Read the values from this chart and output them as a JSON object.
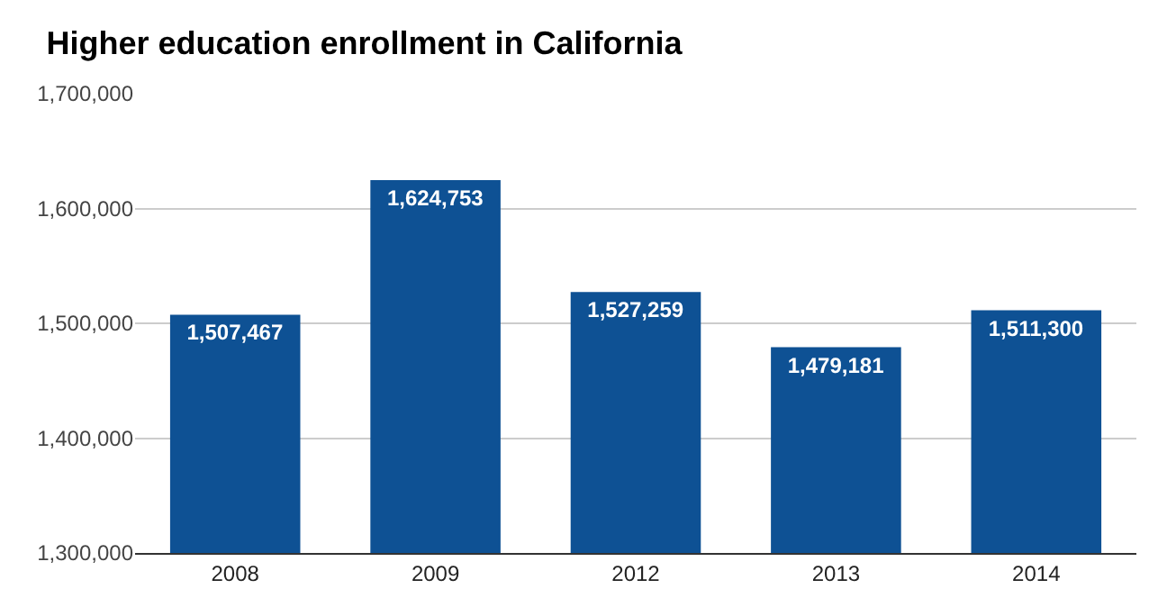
{
  "chart_data": {
    "type": "bar",
    "title": "Higher education enrollment in California",
    "categories": [
      "2008",
      "2009",
      "2012",
      "2013",
      "2014"
    ],
    "values": [
      1507467,
      1624753,
      1527259,
      1479181,
      1511300
    ],
    "color": "#0e5194",
    "ylim": [
      1300000,
      1700000
    ],
    "yticks": [
      {
        "value": 1300000,
        "label": "1,300,000"
      },
      {
        "value": 1400000,
        "label": "1,400,000"
      },
      {
        "value": 1500000,
        "label": "1,500,000"
      },
      {
        "value": 1600000,
        "label": "1,600,000"
      },
      {
        "value": 1700000,
        "label": "1,700,000"
      }
    ],
    "value_labels": [
      "1,507,467",
      "1,624,753",
      "1,527,259",
      "1,479,181",
      "1,511,300"
    ],
    "grid": "y"
  }
}
